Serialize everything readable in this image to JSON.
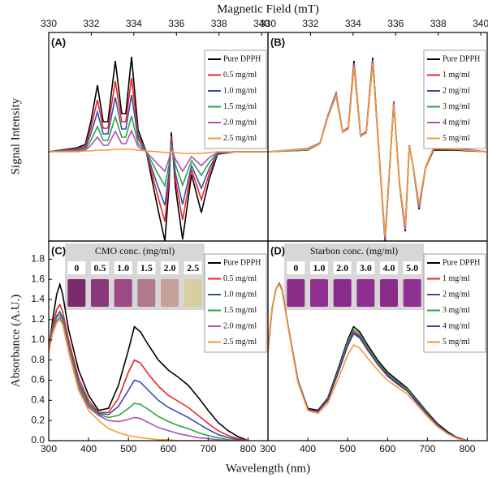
{
  "chart_data": [
    {
      "type": "line",
      "label": "(A)",
      "xlabel": "Magnetic Field (mT)",
      "ylabel": "Signal Intensity",
      "xlim": [
        330,
        340.3
      ],
      "xticks": [
        330,
        332,
        334,
        336,
        338,
        340
      ],
      "ylim": [
        -1.1,
        1.47
      ],
      "legend": "upper right",
      "x": [
        330.0,
        331.34,
        331.72,
        331.98,
        332.29,
        332.56,
        332.78,
        333.13,
        333.43,
        333.62,
        333.89,
        334.2,
        334.58,
        335.15,
        335.46,
        335.65,
        335.76,
        335.95,
        336.29,
        336.71,
        337.17,
        337.55,
        337.93,
        338.77,
        340.3
      ],
      "series": [
        {
          "name": "Pure DPPH",
          "color": "#000000",
          "values": [
            0,
            0.05,
            0.09,
            0.37,
            0.82,
            0.37,
            0.37,
            1.12,
            0.47,
            0.47,
            1.17,
            0.27,
            0,
            -0.73,
            -1.1,
            -0.43,
            0.24,
            -0.43,
            -1.08,
            -0.28,
            -0.75,
            -0.33,
            -0.03,
            0,
            0
          ]
        },
        {
          "name": "0.5 mg/ml",
          "color": "#e8262a",
          "values": [
            0,
            0.04,
            0.07,
            0.29,
            0.64,
            0.29,
            0.29,
            0.87,
            0.37,
            0.37,
            0.91,
            0.21,
            0,
            -0.57,
            -0.86,
            -0.34,
            0.19,
            -0.34,
            -0.84,
            -0.22,
            -0.59,
            -0.26,
            -0.02,
            0,
            0
          ]
        },
        {
          "name": "1.0 mg/ml",
          "color": "#3a4fa8",
          "values": [
            0,
            0.03,
            0.05,
            0.22,
            0.49,
            0.22,
            0.22,
            0.67,
            0.28,
            0.28,
            0.7,
            0.16,
            0,
            -0.44,
            -0.66,
            -0.26,
            0.14,
            -0.26,
            -0.65,
            -0.17,
            -0.45,
            -0.2,
            -0.02,
            0,
            0
          ]
        },
        {
          "name": "1.5 mg/ml",
          "color": "#2ca444",
          "values": [
            0,
            0.02,
            0.03,
            0.14,
            0.31,
            0.14,
            0.14,
            0.43,
            0.18,
            0.18,
            0.44,
            0.1,
            0,
            -0.28,
            -0.42,
            -0.16,
            0.09,
            -0.16,
            -0.41,
            -0.11,
            -0.29,
            -0.13,
            -0.01,
            0,
            0
          ]
        },
        {
          "name": "2.0 mg/ml",
          "color": "#b44fb4",
          "values": [
            0,
            0.01,
            0.02,
            0.08,
            0.18,
            0.08,
            0.08,
            0.25,
            0.1,
            0.1,
            0.26,
            0.06,
            0,
            -0.16,
            -0.24,
            -0.09,
            0.05,
            -0.09,
            -0.24,
            -0.06,
            -0.17,
            -0.07,
            -0.01,
            0,
            0
          ]
        },
        {
          "name": "2.5 mg/ml",
          "color": "#f39a3a",
          "values": [
            0,
            0,
            0.01,
            0.01,
            0.02,
            0.02,
            0.02,
            0.03,
            0.03,
            0.03,
            0.03,
            0.02,
            0.01,
            0,
            -0.01,
            -0.01,
            0,
            -0.01,
            -0.02,
            -0.02,
            -0.02,
            -0.01,
            0,
            0,
            0
          ]
        }
      ]
    },
    {
      "type": "line",
      "label": "(B)",
      "xlim": [
        330,
        340.3
      ],
      "xticks": [
        330,
        332,
        334,
        336,
        338,
        340
      ],
      "ylim": [
        -1.1,
        1.47
      ],
      "legend": "upper right",
      "x": [
        330.0,
        331.87,
        332.44,
        332.82,
        333.2,
        333.51,
        333.78,
        334.04,
        334.35,
        334.62,
        334.92,
        335.19,
        335.5,
        335.72,
        335.91,
        336.18,
        336.45,
        336.64,
        336.83,
        337.1,
        337.4,
        337.78,
        338.74,
        340.26
      ],
      "series": [
        {
          "name": "Pure DPPH",
          "color": "#000000",
          "values": [
            0,
            0.02,
            0.1,
            0.45,
            0.72,
            0.25,
            0.3,
            1.12,
            0.2,
            0.25,
            1.16,
            0.1,
            -1.1,
            -0.2,
            0.62,
            -0.4,
            -0.98,
            0.08,
            -0.2,
            -0.71,
            -0.2,
            0.02,
            0.02,
            0
          ]
        },
        {
          "name": "1 mg/ml",
          "color": "#e8262a",
          "values": [
            0,
            0.03,
            0.1,
            0.44,
            0.7,
            0.24,
            0.29,
            1.08,
            0.19,
            0.24,
            1.12,
            0.1,
            -1.07,
            -0.19,
            0.6,
            -0.39,
            -0.95,
            0.08,
            -0.19,
            -0.68,
            -0.19,
            0.03,
            0.03,
            0
          ]
        },
        {
          "name": "2 mg/ml",
          "color": "#3a4fa8",
          "values": [
            0,
            0.03,
            0.1,
            0.43,
            0.69,
            0.24,
            0.29,
            1.06,
            0.19,
            0.24,
            1.1,
            0.1,
            -1.05,
            -0.19,
            0.59,
            -0.38,
            -0.93,
            0.07,
            -0.19,
            -0.66,
            -0.19,
            0.04,
            0.04,
            0
          ]
        },
        {
          "name": "3 mg/ml",
          "color": "#2ca444",
          "values": [
            0,
            0.02,
            0.1,
            0.44,
            0.7,
            0.24,
            0.29,
            1.07,
            0.19,
            0.24,
            1.11,
            0.1,
            -1.06,
            -0.19,
            0.6,
            -0.39,
            -0.94,
            0.08,
            -0.19,
            -0.67,
            -0.19,
            0.04,
            0.03,
            0
          ]
        },
        {
          "name": "4 mg/ml",
          "color": "#b44fb4",
          "values": [
            0,
            0.04,
            0.11,
            0.45,
            0.71,
            0.25,
            0.3,
            1.09,
            0.2,
            0.25,
            1.13,
            0.1,
            -1.08,
            -0.2,
            0.61,
            -0.39,
            -0.96,
            0.08,
            -0.2,
            -0.69,
            -0.2,
            0.05,
            0.05,
            0
          ]
        },
        {
          "name": "5 mg/ml",
          "color": "#f39a3a",
          "values": [
            0,
            0.03,
            0.1,
            0.43,
            0.69,
            0.24,
            0.28,
            1.05,
            0.19,
            0.23,
            1.09,
            0.09,
            -1.04,
            -0.19,
            0.58,
            -0.38,
            -0.92,
            0.07,
            -0.19,
            -0.65,
            -0.19,
            0.04,
            0.03,
            0
          ]
        }
      ]
    },
    {
      "type": "line",
      "label": "(C)",
      "xlabel": "Wavelength (nm)",
      "ylabel": "Absorbance (A.U.)",
      "xlim": [
        300,
        850
      ],
      "xticks": [
        300,
        400,
        500,
        600,
        700,
        800
      ],
      "ylim": [
        0,
        1.98
      ],
      "yticks": [
        {
          "value": 0,
          "label": "0.0"
        },
        0.2,
        0.4,
        0.6,
        0.8,
        {
          "value": 1,
          "label": "1.0"
        },
        1.2,
        1.4,
        1.6,
        1.8
      ],
      "legend": "upper right",
      "inset": {
        "title": "CMO conc. (mg/ml)",
        "labels": [
          "0",
          "0.5",
          "1.0",
          "1.5",
          "2.0",
          "2.5"
        ],
        "colors": [
          "#7b2a6e",
          "#8a3a7a",
          "#9a4a84",
          "#b07a8e",
          "#c8a09a",
          "#d8cfa0"
        ]
      },
      "x": [
        300,
        310,
        320,
        328,
        335,
        350,
        375,
        400,
        425,
        450,
        475,
        500,
        515,
        530,
        550,
        575,
        600,
        625,
        650,
        675,
        700,
        725,
        750,
        775,
        800
      ],
      "series": [
        {
          "name": "Pure DPPH",
          "color": "#000000",
          "values": [
            0.9,
            1.2,
            1.45,
            1.55,
            1.45,
            1.1,
            0.7,
            0.45,
            0.3,
            0.32,
            0.55,
            0.9,
            1.13,
            1.08,
            0.95,
            0.8,
            0.7,
            0.63,
            0.55,
            0.43,
            0.3,
            0.18,
            0.1,
            0.04,
            0
          ]
        },
        {
          "name": "0.5 mg/ml",
          "color": "#e8262a",
          "values": [
            0.9,
            1.15,
            1.3,
            1.35,
            1.28,
            1.0,
            0.62,
            0.4,
            0.28,
            0.28,
            0.42,
            0.68,
            0.8,
            0.77,
            0.66,
            0.54,
            0.45,
            0.39,
            0.33,
            0.25,
            0.17,
            0.1,
            0.05,
            0.02,
            0
          ]
        },
        {
          "name": "1.0 mg/ml",
          "color": "#3a4fa8",
          "values": [
            0.9,
            1.12,
            1.24,
            1.28,
            1.22,
            0.95,
            0.58,
            0.37,
            0.27,
            0.26,
            0.34,
            0.5,
            0.6,
            0.58,
            0.5,
            0.4,
            0.33,
            0.28,
            0.23,
            0.17,
            0.11,
            0.06,
            0.03,
            0.01,
            0
          ]
        },
        {
          "name": "1.5 mg/ml",
          "color": "#2ca444",
          "values": [
            0.9,
            1.1,
            1.22,
            1.25,
            1.2,
            0.93,
            0.55,
            0.35,
            0.26,
            0.23,
            0.25,
            0.32,
            0.37,
            0.36,
            0.31,
            0.24,
            0.19,
            0.15,
            0.12,
            0.08,
            0.05,
            0.03,
            0.01,
            0,
            0
          ]
        },
        {
          "name": "2.0 mg/ml",
          "color": "#b44fb4",
          "values": [
            0.9,
            1.08,
            1.19,
            1.22,
            1.17,
            0.9,
            0.52,
            0.33,
            0.25,
            0.2,
            0.19,
            0.21,
            0.23,
            0.22,
            0.18,
            0.13,
            0.1,
            0.07,
            0.05,
            0.03,
            0.02,
            0.01,
            0,
            0,
            0
          ]
        },
        {
          "name": "2.5 mg/ml",
          "color": "#f39a3a",
          "values": [
            0.88,
            1.06,
            1.17,
            1.2,
            1.15,
            0.88,
            0.5,
            0.3,
            0.2,
            0.12,
            0.08,
            0.05,
            0.04,
            0.03,
            0.02,
            0.01,
            0.01,
            0,
            0,
            0,
            0,
            0,
            0,
            0,
            0
          ]
        }
      ]
    },
    {
      "type": "line",
      "label": "(D)",
      "xlim": [
        300,
        850
      ],
      "xticks": [
        300,
        400,
        500,
        600,
        700,
        800
      ],
      "ylim": [
        0,
        1.98
      ],
      "legend": "upper right",
      "inset": {
        "title": "Starbon conc. (mg/ml)",
        "labels": [
          "0",
          "1.0",
          "2.0",
          "3.0",
          "4.0",
          "5.0"
        ],
        "colors": [
          "#8b2e8a",
          "#8e3090",
          "#8a2c8c",
          "#8c2f8e",
          "#8a2d8a",
          "#8e3391"
        ]
      },
      "x": [
        300,
        310,
        320,
        328,
        335,
        350,
        375,
        400,
        425,
        450,
        475,
        500,
        515,
        530,
        550,
        575,
        600,
        625,
        650,
        675,
        700,
        725,
        750,
        775,
        800
      ],
      "series": [
        {
          "name": "Pure DPPH",
          "color": "#000000",
          "values": [
            0.88,
            1.3,
            1.5,
            1.56,
            1.5,
            1.15,
            0.6,
            0.32,
            0.3,
            0.42,
            0.7,
            1.0,
            1.13,
            1.08,
            0.95,
            0.8,
            0.68,
            0.6,
            0.52,
            0.4,
            0.28,
            0.17,
            0.09,
            0.03,
            0
          ]
        },
        {
          "name": "1 mg/ml",
          "color": "#e8262a",
          "values": [
            0.88,
            1.3,
            1.5,
            1.56,
            1.5,
            1.15,
            0.6,
            0.31,
            0.29,
            0.4,
            0.67,
            0.96,
            1.08,
            1.04,
            0.91,
            0.77,
            0.65,
            0.57,
            0.5,
            0.38,
            0.27,
            0.16,
            0.08,
            0.03,
            0
          ]
        },
        {
          "name": "2 mg/ml",
          "color": "#3a4fa8",
          "values": [
            0.88,
            1.3,
            1.5,
            1.56,
            1.5,
            1.15,
            0.6,
            0.31,
            0.29,
            0.4,
            0.66,
            0.94,
            1.06,
            1.02,
            0.9,
            0.76,
            0.64,
            0.56,
            0.49,
            0.37,
            0.26,
            0.16,
            0.08,
            0.03,
            0
          ]
        },
        {
          "name": "3 mg/ml",
          "color": "#2ca444",
          "values": [
            0.88,
            1.3,
            1.5,
            1.56,
            1.5,
            1.15,
            0.6,
            0.31,
            0.29,
            0.41,
            0.68,
            0.98,
            1.1,
            1.06,
            0.93,
            0.78,
            0.66,
            0.58,
            0.51,
            0.39,
            0.27,
            0.16,
            0.08,
            0.03,
            0
          ]
        },
        {
          "name": "4 mg/ml",
          "color": "#6a2c8e",
          "values": [
            0.88,
            1.3,
            1.5,
            1.56,
            1.5,
            1.15,
            0.6,
            0.31,
            0.29,
            0.4,
            0.66,
            0.95,
            1.07,
            1.03,
            0.9,
            0.76,
            0.65,
            0.57,
            0.49,
            0.38,
            0.26,
            0.16,
            0.08,
            0.03,
            0
          ]
        },
        {
          "name": "5 mg/ml",
          "color": "#f39a3a",
          "values": [
            0.88,
            1.3,
            1.5,
            1.55,
            1.49,
            1.14,
            0.58,
            0.3,
            0.27,
            0.37,
            0.6,
            0.85,
            0.95,
            0.92,
            0.82,
            0.7,
            0.6,
            0.53,
            0.46,
            0.35,
            0.24,
            0.14,
            0.07,
            0.02,
            0
          ]
        }
      ]
    }
  ]
}
